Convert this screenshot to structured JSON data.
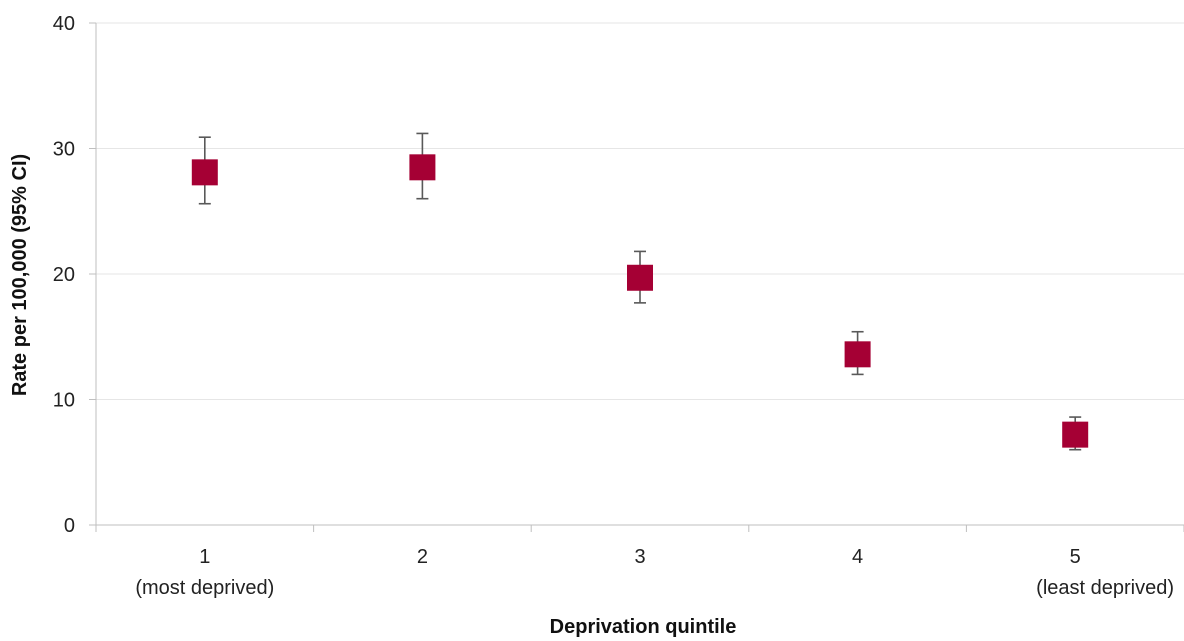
{
  "chart_data": {
    "type": "scatter",
    "title": "",
    "xlabel": "Deprivation quintile",
    "ylabel": "Rate per 100,000 (95% CI)",
    "ylim": [
      0,
      40
    ],
    "yticks": [
      "0",
      "10",
      "20",
      "30",
      "40"
    ],
    "grid": true,
    "categories": [
      {
        "line1": "1",
        "line2": "(most deprived)"
      },
      {
        "line1": "2",
        "line2": ""
      },
      {
        "line1": "3",
        "line2": ""
      },
      {
        "line1": "4",
        "line2": ""
      },
      {
        "line1": "5",
        "line2": "(least deprived)"
      }
    ],
    "series": [
      {
        "values": [
          28.1,
          28.5,
          19.7,
          13.6,
          7.2
        ],
        "ci_lower": [
          25.6,
          26.0,
          17.7,
          12.0,
          6.0
        ],
        "ci_upper": [
          30.9,
          31.2,
          21.8,
          15.4,
          8.6
        ],
        "color": "#a50034"
      }
    ],
    "errorbar_color": "#595959",
    "axis_color": "#bfbfbf",
    "grid_color": "#e6e6e6"
  }
}
